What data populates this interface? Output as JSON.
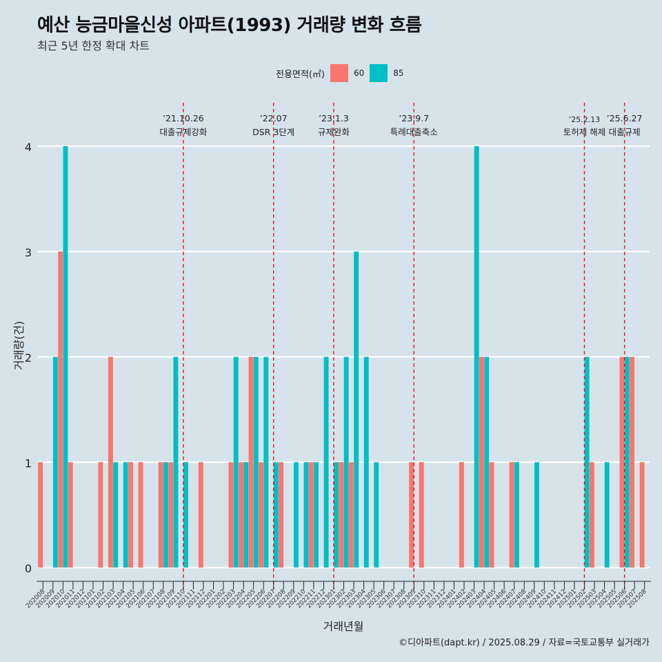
{
  "title": "예산 능금마을신성 아파트(1993) 거래량 변화 흐름",
  "subtitle": "최근 5년 한정 확대 차트",
  "legend": {
    "title": "전용면적(㎡)",
    "items": [
      {
        "label": "60",
        "color": "#F8766D"
      },
      {
        "label": "85",
        "color": "#00BFC4"
      }
    ]
  },
  "caption": "©디아파트(dapt.kr) / 2025.08.29 / 자료=국토교통부 실거래가",
  "chart_data": {
    "type": "bar",
    "xlabel": "거래년월",
    "ylabel": "거래량(건)",
    "ylim": [
      0,
      4
    ],
    "yticks": [
      0,
      1,
      2,
      3,
      4
    ],
    "grid": true,
    "legend_position": "top",
    "categories": [
      "202008",
      "202009",
      "202010",
      "202011",
      "202012",
      "202101",
      "202102",
      "202103",
      "202104",
      "202105",
      "202106",
      "202107",
      "202108",
      "202109",
      "202110",
      "202111",
      "202112",
      "202201",
      "202202",
      "202203",
      "202204",
      "202205",
      "202206",
      "202207",
      "202208",
      "202209",
      "202210",
      "202211",
      "202212",
      "202301",
      "202302",
      "202303",
      "202304",
      "202305",
      "202306",
      "202307",
      "202308",
      "202309",
      "202310",
      "202311",
      "202312",
      "202401",
      "202402",
      "202403",
      "202404",
      "202405",
      "202406",
      "202407",
      "202408",
      "202409",
      "202410",
      "202411",
      "202412",
      "202501",
      "202502",
      "202503",
      "202504",
      "202505",
      "202506",
      "202507",
      "202508"
    ],
    "series": [
      {
        "name": "60",
        "color": "#F8766D",
        "values": [
          1,
          0,
          3,
          1,
          0,
          0,
          1,
          2,
          0,
          1,
          1,
          0,
          1,
          1,
          0,
          0,
          1,
          0,
          0,
          1,
          1,
          2,
          1,
          0,
          1,
          0,
          0,
          1,
          0,
          0,
          1,
          1,
          0,
          0,
          0,
          0,
          0,
          1,
          1,
          0,
          0,
          0,
          1,
          0,
          2,
          1,
          0,
          1,
          0,
          0,
          0,
          0,
          0,
          0,
          0,
          1,
          0,
          0,
          2,
          2,
          1
        ]
      },
      {
        "name": "85",
        "color": "#00BFC4",
        "values": [
          0,
          2,
          4,
          0,
          0,
          0,
          0,
          1,
          1,
          0,
          0,
          0,
          1,
          2,
          1,
          0,
          0,
          0,
          0,
          2,
          1,
          2,
          2,
          1,
          0,
          1,
          1,
          1,
          2,
          1,
          2,
          3,
          2,
          1,
          0,
          0,
          0,
          0,
          0,
          0,
          0,
          0,
          0,
          4,
          2,
          0,
          0,
          1,
          0,
          1,
          0,
          0,
          0,
          0,
          2,
          0,
          1,
          0,
          2,
          0,
          0
        ]
      }
    ],
    "annotations": [
      {
        "date": "’21.10.26",
        "label": "대출규제강화",
        "after_index": 14,
        "frac": 0.0
      },
      {
        "date": "’22.07",
        "label": "DSR 3단계",
        "after_index": 23,
        "frac": 0.0
      },
      {
        "date": "’23.1.3",
        "label": "규제완화",
        "after_index": 29,
        "frac": 0.0
      },
      {
        "date": "’23.9.7",
        "label": "특례대출축소",
        "after_index": 37,
        "frac": 0.0
      },
      {
        "date": "’25.2.13",
        "label": "토허제 해제",
        "after_index": 54,
        "frac": 0.0
      },
      {
        "date": "’25.6.27",
        "label": "대출규제",
        "after_index": 58,
        "frac": 0.0
      }
    ]
  }
}
